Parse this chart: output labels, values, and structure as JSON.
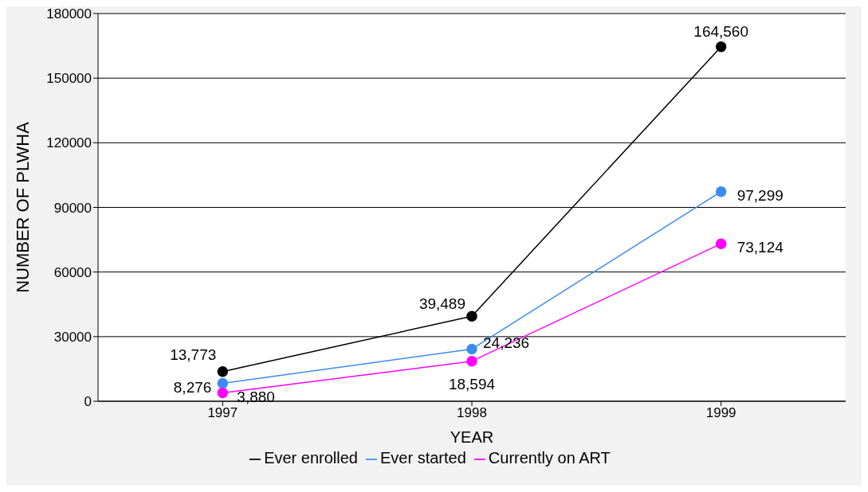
{
  "chart_data": {
    "type": "line",
    "xlabel": "YEAR",
    "ylabel": "NUMBER OF PLWHA",
    "categories": [
      "1997",
      "1998",
      "1999"
    ],
    "series": [
      {
        "name": "Ever enrolled",
        "color": "#000000",
        "values": [
          13773,
          39489,
          164560
        ],
        "value_labels": [
          "13,773",
          "39,489",
          "164,560"
        ]
      },
      {
        "name": "Ever started",
        "color": "#3c8cf0",
        "values": [
          8276,
          24236,
          97299
        ],
        "value_labels": [
          "8,276",
          "24,236",
          "97,299"
        ]
      },
      {
        "name": "Currently on ART",
        "color": "#ff00ff",
        "values": [
          3880,
          18594,
          73124
        ],
        "value_labels": [
          "3,880",
          "18,594",
          "73,124"
        ]
      }
    ],
    "ylim": [
      0,
      180000
    ],
    "yticks": [
      0,
      30000,
      60000,
      90000,
      120000,
      150000,
      180000
    ],
    "grid": "y",
    "legend": "bottom",
    "marker": "circle",
    "line_style": "solid"
  }
}
